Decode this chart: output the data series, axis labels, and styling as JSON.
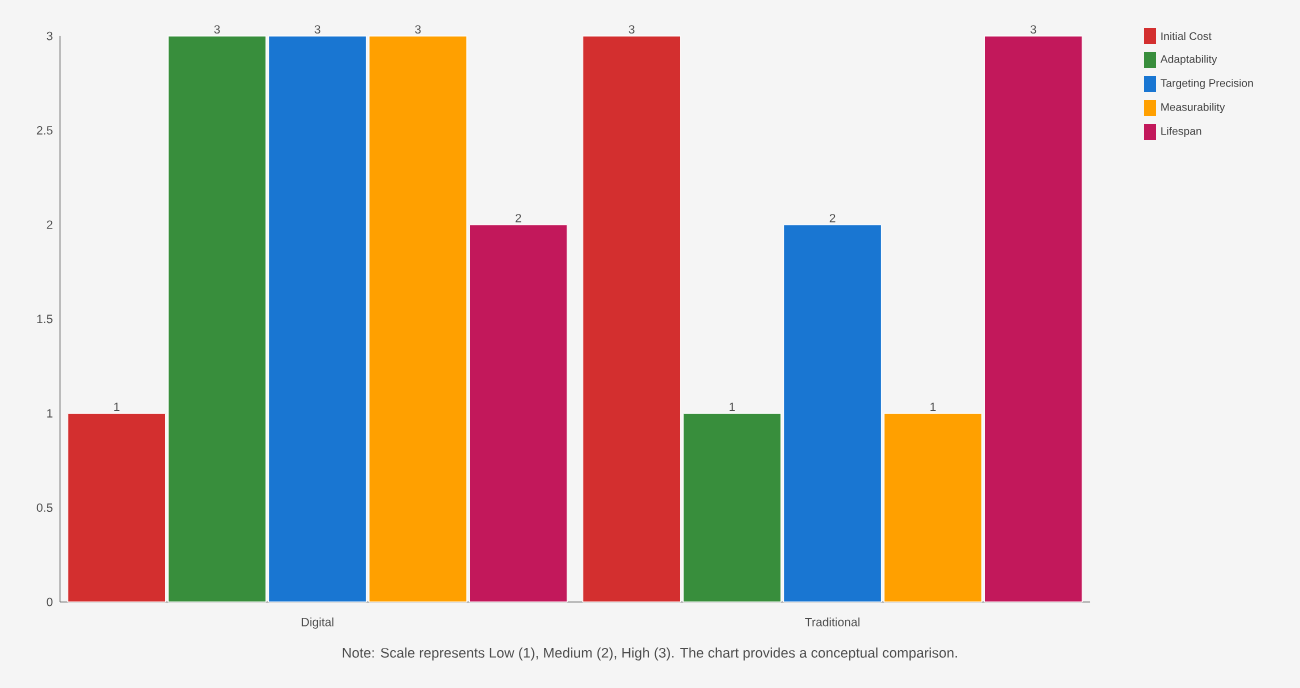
{
  "chart_data": {
    "type": "bar",
    "categories": [
      "Digital",
      "Traditional"
    ],
    "series": [
      {
        "name": "Initial Cost",
        "color": "#d32f2f",
        "values": [
          1,
          3
        ]
      },
      {
        "name": "Adaptability",
        "color": "#388e3c",
        "values": [
          3,
          1
        ]
      },
      {
        "name": "Targeting Precision",
        "color": "#1976d2",
        "values": [
          3,
          2
        ]
      },
      {
        "name": "Measurability",
        "color": "#ffa000",
        "values": [
          3,
          1
        ]
      },
      {
        "name": "Lifespan",
        "color": "#c2185b",
        "values": [
          2,
          3
        ]
      }
    ],
    "ylim": [
      0,
      3
    ],
    "yticks": [
      0,
      0.5,
      1,
      1.5,
      2,
      2.5,
      3
    ],
    "data_labels": true,
    "legend": "top right",
    "grid": false,
    "annotations": [
      "Note: Scale represents Low (1), Medium (2), High (3). The chart provides a conceptual comparison."
    ]
  }
}
